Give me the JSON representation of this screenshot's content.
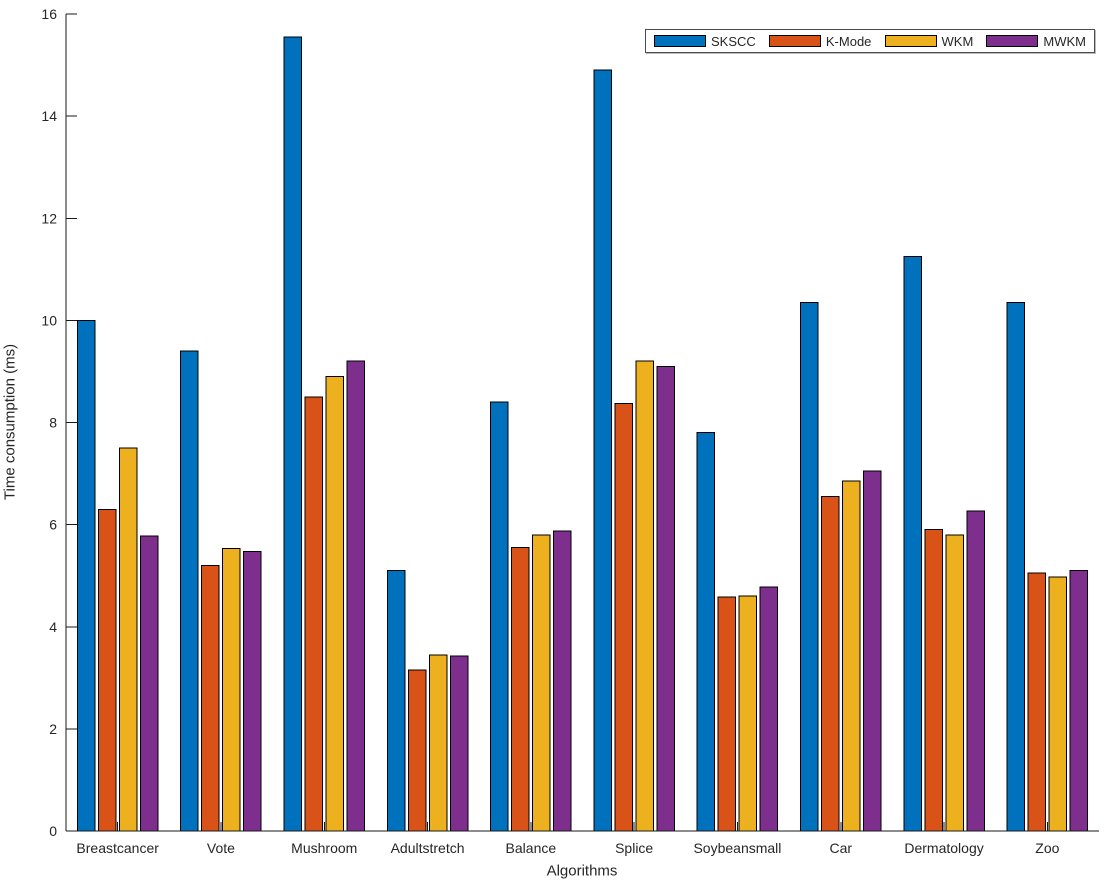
{
  "figure": {
    "background": "#ffffff",
    "axis_color": "#1a1a1a",
    "tick_label_color": "#262626"
  },
  "chart_data": {
    "type": "bar",
    "title": "",
    "xlabel": "Algorithms",
    "ylabel": "Time consumption (ms)",
    "ylim": [
      0,
      16
    ],
    "yticks": [
      0,
      2,
      4,
      6,
      8,
      10,
      12,
      14,
      16
    ],
    "grid": false,
    "legend_position": "top-right",
    "categories": [
      "Breastcancer",
      "Vote",
      "Mushroom",
      "Adultstretch",
      "Balance",
      "Splice",
      "Soybeansmall",
      "Car",
      "Dermatology",
      "Zoo"
    ],
    "series": [
      {
        "name": "SKSCC",
        "color": "#0072BD",
        "values": [
          10.0,
          9.4,
          15.55,
          5.1,
          8.4,
          14.9,
          7.8,
          10.35,
          11.25,
          10.35
        ]
      },
      {
        "name": "K-Mode",
        "color": "#D95319",
        "values": [
          6.3,
          5.2,
          8.5,
          3.15,
          5.55,
          8.37,
          4.58,
          6.55,
          5.9,
          5.05
        ]
      },
      {
        "name": "WKM",
        "color": "#EDB120",
        "values": [
          7.5,
          5.53,
          8.9,
          3.45,
          5.8,
          9.2,
          4.6,
          6.85,
          5.8,
          4.97
        ]
      },
      {
        "name": "MWKM",
        "color": "#7E2F8E",
        "values": [
          5.78,
          5.47,
          9.2,
          3.43,
          5.88,
          9.1,
          4.78,
          7.05,
          6.27,
          5.1
        ]
      }
    ]
  }
}
